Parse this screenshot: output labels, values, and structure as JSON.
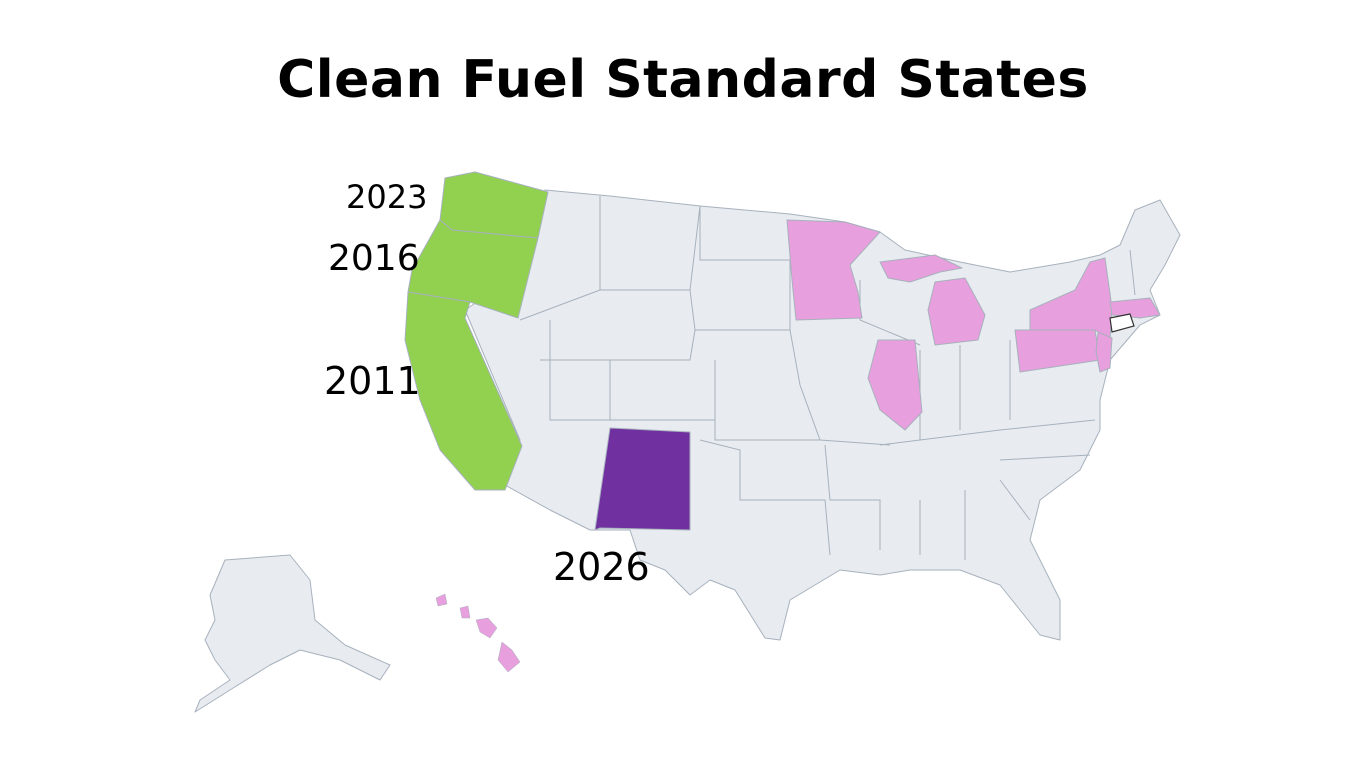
{
  "title": "Clean Fuel Standard States",
  "colors": {
    "default_state": "#e8ecf0",
    "border": "#a7b1bd",
    "west_coast_program": "#92d04f",
    "new_mexico_program": "#7030a0",
    "proposed_or_considering": "#e89fdd"
  },
  "labels": {
    "washington": "2023",
    "oregon": "2016",
    "california": "2011",
    "new_mexico": "2026"
  }
}
